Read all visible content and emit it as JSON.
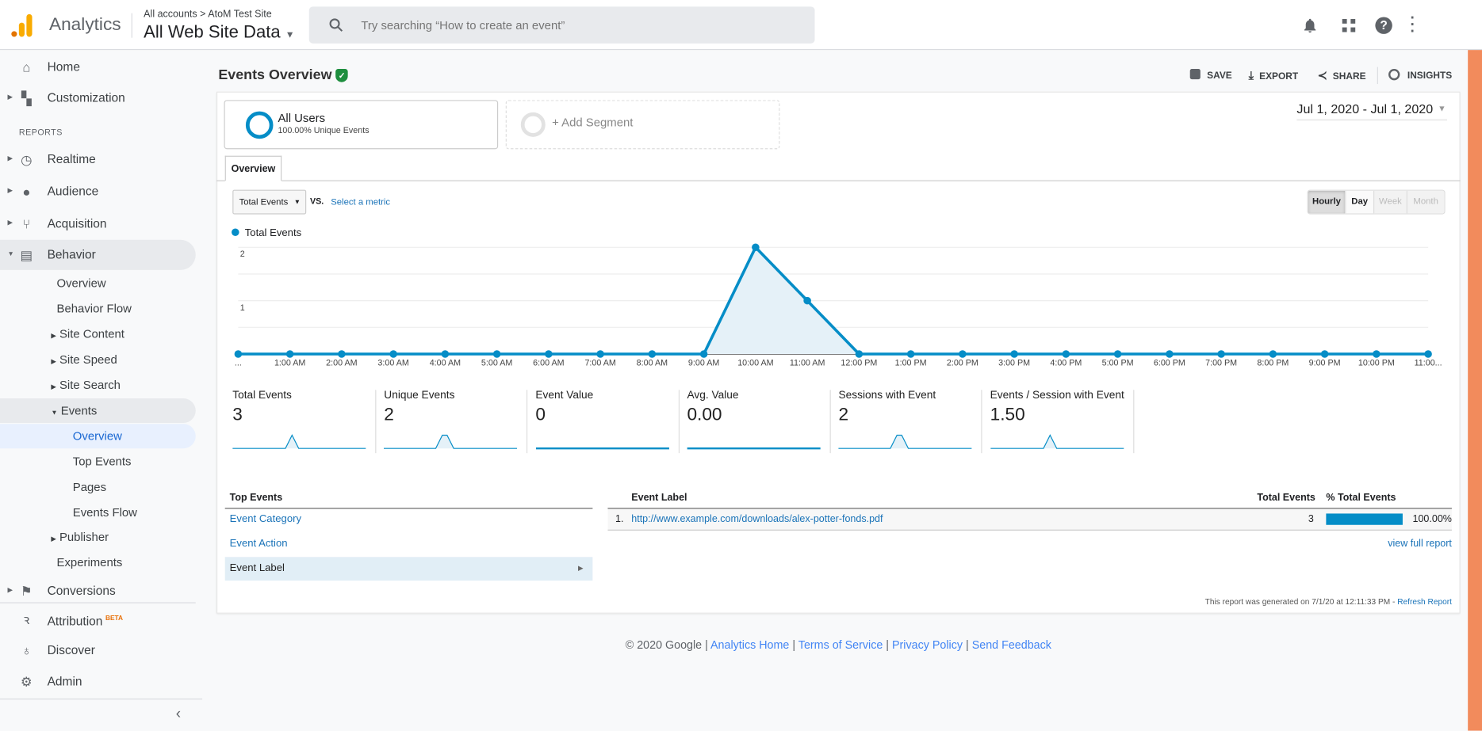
{
  "header": {
    "app_name": "Analytics",
    "breadcrumb": [
      "All accounts",
      "AtoM Test Site"
    ],
    "view": "All Web Site Data",
    "search_placeholder": "Try searching “How to create an event”"
  },
  "sidebar": {
    "top": [
      {
        "label": "Home",
        "icon": "home-icon"
      },
      {
        "label": "Customization",
        "icon": "customization-icon"
      }
    ],
    "section": "REPORTS",
    "reports": [
      {
        "label": "Realtime",
        "icon": "clock-icon"
      },
      {
        "label": "Audience",
        "icon": "person-icon"
      },
      {
        "label": "Acquisition",
        "icon": "acquisition-icon"
      },
      {
        "label": "Behavior",
        "icon": "behavior-icon"
      }
    ],
    "behavior_items": [
      "Overview",
      "Behavior Flow",
      "Site Content",
      "Site Speed",
      "Site Search",
      "Events"
    ],
    "events_items": [
      "Overview",
      "Top Events",
      "Pages",
      "Events Flow"
    ],
    "behavior_tail": [
      "Publisher",
      "Experiments"
    ],
    "conversions": "Conversions",
    "bottom": [
      {
        "label": "Attribution",
        "badge": "BETA"
      },
      {
        "label": "Discover"
      },
      {
        "label": "Admin"
      }
    ]
  },
  "page": {
    "title": "Events Overview",
    "toolbar": {
      "save": "SAVE",
      "export": "EXPORT",
      "share": "SHARE",
      "insights": "INSIGHTS"
    },
    "segment": {
      "name": "All Users",
      "sub": "100.00% Unique Events",
      "add": "+ Add Segment"
    },
    "date_range": "Jul 1, 2020 - Jul 1, 2020",
    "tab": "Overview",
    "metric_select": "Total Events",
    "vs": "VS.",
    "select_metric": "Select a metric",
    "granularity": [
      "Hourly",
      "Day",
      "Week",
      "Month"
    ],
    "granularity_selected": "Hourly"
  },
  "chart_data": {
    "type": "area",
    "legend": "Total Events",
    "x": [
      "...",
      "1:00 AM",
      "2:00 AM",
      "3:00 AM",
      "4:00 AM",
      "5:00 AM",
      "6:00 AM",
      "7:00 AM",
      "8:00 AM",
      "9:00 AM",
      "10:00 AM",
      "11:00 AM",
      "12:00 PM",
      "1:00 PM",
      "2:00 PM",
      "3:00 PM",
      "4:00 PM",
      "5:00 PM",
      "6:00 PM",
      "7:00 PM",
      "8:00 PM",
      "9:00 PM",
      "10:00 PM",
      "11:00..."
    ],
    "values": [
      0,
      0,
      0,
      0,
      0,
      0,
      0,
      0,
      0,
      0,
      2,
      1,
      0,
      0,
      0,
      0,
      0,
      0,
      0,
      0,
      0,
      0,
      0,
      0
    ],
    "yticks": [
      "1",
      "2"
    ],
    "ylim": [
      0,
      2
    ],
    "color": "#058dc7",
    "grid": true
  },
  "metrics": [
    {
      "label": "Total Events",
      "value": "3"
    },
    {
      "label": "Unique Events",
      "value": "2"
    },
    {
      "label": "Event Value",
      "value": "0"
    },
    {
      "label": "Avg. Value",
      "value": "0.00"
    },
    {
      "label": "Sessions with Event",
      "value": "2"
    },
    {
      "label": "Events / Session with Event",
      "value": "1.50"
    }
  ],
  "top_events": {
    "header": "Top Events",
    "items": [
      "Event Category",
      "Event Action",
      "Event Label"
    ],
    "selected": "Event Label"
  },
  "table": {
    "headers": [
      "Event Label",
      "Total Events",
      "% Total Events"
    ],
    "rows": [
      {
        "index": "1.",
        "label": "http://www.example.com/downloads/alex-potter-fonds.pdf",
        "total": "3",
        "pct": "100.00%",
        "fraction": 1.0
      }
    ],
    "view_full": "view full report"
  },
  "generated": {
    "text": "This report was generated on 7/1/20 at 12:11:33 PM - ",
    "refresh": "Refresh Report"
  },
  "footer": {
    "copyright": "© 2020 Google",
    "links": [
      "Analytics Home",
      "Terms of Service",
      "Privacy Policy",
      "Send Feedback"
    ]
  }
}
